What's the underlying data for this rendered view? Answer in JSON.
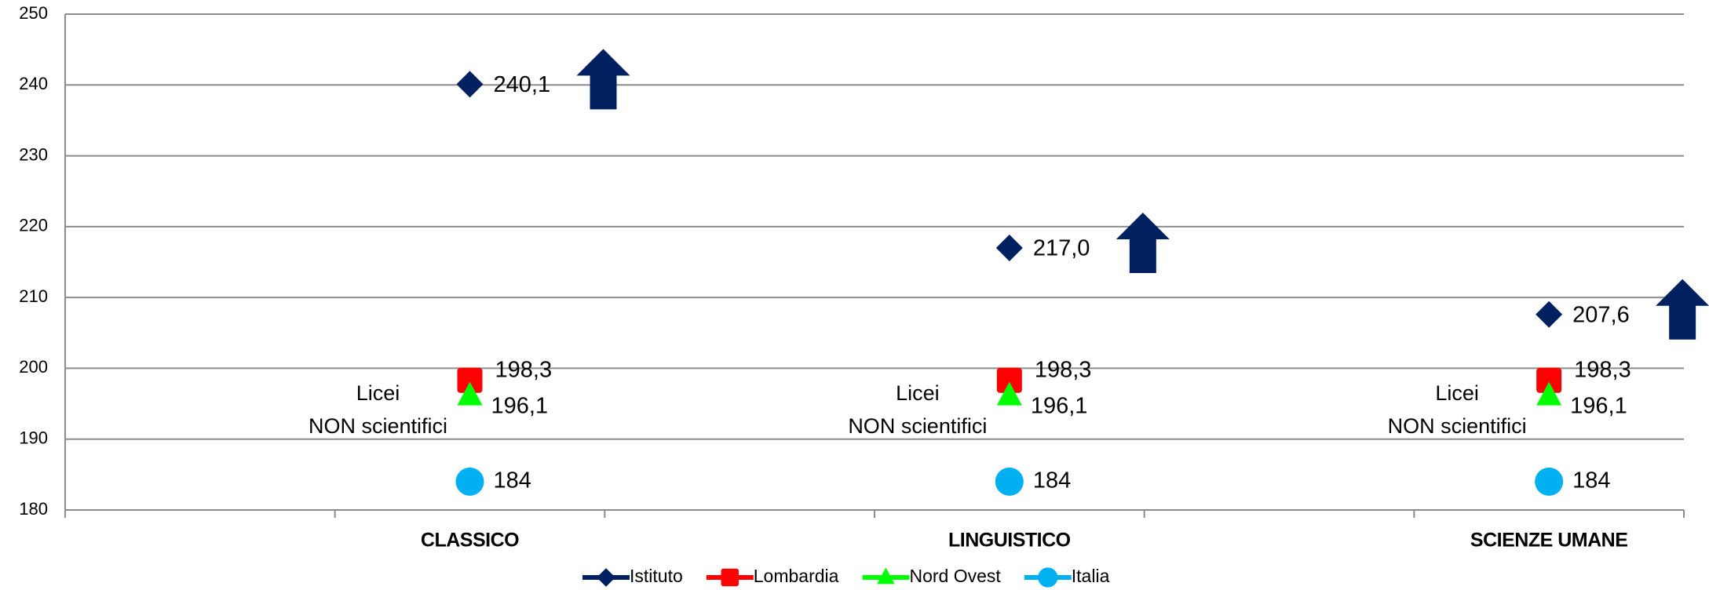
{
  "chart_data": {
    "type": "line",
    "show_lines": false,
    "categories": [
      null,
      "CLASSICO",
      null,
      "LINGUISTICO",
      null,
      "SCIENZE UMANE"
    ],
    "series": [
      {
        "name": "Istituto",
        "color": "#002060",
        "marker": "diamond",
        "values": [
          null,
          240.1,
          null,
          217.0,
          null,
          207.6
        ],
        "value_labels": [
          null,
          "240,1",
          null,
          "217,0",
          null,
          "207,6"
        ]
      },
      {
        "name": "Lombardia",
        "color": "#ff0000",
        "marker": "square",
        "values": [
          null,
          198.3,
          null,
          198.3,
          null,
          198.3
        ],
        "value_labels": [
          null,
          "198,3",
          null,
          "198,3",
          null,
          "198,3"
        ]
      },
      {
        "name": "Nord Ovest",
        "color": "#00ff00",
        "marker": "triangle",
        "values": [
          null,
          196.1,
          null,
          196.1,
          null,
          196.1
        ],
        "value_labels": [
          null,
          "196,1",
          null,
          "196,1",
          null,
          "196,1"
        ]
      },
      {
        "name": "Italia",
        "color": "#00b0f0",
        "marker": "circle",
        "values": [
          null,
          184,
          null,
          184,
          null,
          184
        ]
      }
    ],
    "annotations": [
      "Licei",
      "NON scientifici"
    ],
    "ylim": [
      180,
      250
    ],
    "yticks": [
      180,
      190,
      200,
      210,
      220,
      230,
      240,
      250
    ],
    "grid": true,
    "legend": "bottom"
  }
}
